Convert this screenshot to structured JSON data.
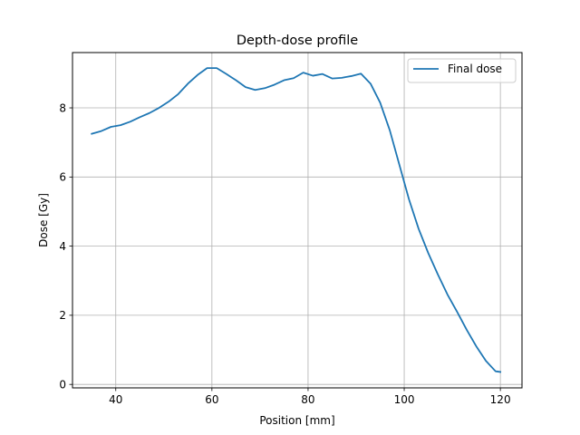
{
  "chart_data": {
    "type": "line",
    "title": "Depth-dose profile",
    "xlabel": "Position [mm]",
    "ylabel": "Dose [Gy]",
    "xlim": [
      31,
      124.5
    ],
    "ylim": [
      -0.1,
      9.6
    ],
    "xticks": [
      40,
      60,
      80,
      100,
      120
    ],
    "yticks": [
      0,
      2,
      4,
      6,
      8
    ],
    "grid": true,
    "legend_position": "upper right",
    "series": [
      {
        "name": "Final dose",
        "color": "#1f77b4",
        "x": [
          35,
          37,
          39,
          41,
          43,
          45,
          47,
          49,
          51,
          53,
          55,
          57,
          59,
          61,
          63,
          65,
          67,
          69,
          71,
          73,
          75,
          77,
          79,
          81,
          83,
          85,
          87,
          89,
          91,
          93,
          95,
          97,
          99,
          101,
          103,
          105,
          107,
          109,
          111,
          113,
          115,
          117,
          119,
          120
        ],
        "y": [
          7.25,
          7.33,
          7.45,
          7.5,
          7.6,
          7.73,
          7.85,
          8.0,
          8.18,
          8.4,
          8.7,
          8.95,
          9.15,
          9.15,
          8.98,
          8.8,
          8.6,
          8.52,
          8.57,
          8.67,
          8.8,
          8.86,
          9.02,
          8.93,
          8.98,
          8.85,
          8.87,
          8.92,
          8.99,
          8.7,
          8.15,
          7.35,
          6.35,
          5.35,
          4.5,
          3.8,
          3.18,
          2.6,
          2.1,
          1.58,
          1.1,
          0.68,
          0.38,
          0.36
        ]
      }
    ]
  }
}
